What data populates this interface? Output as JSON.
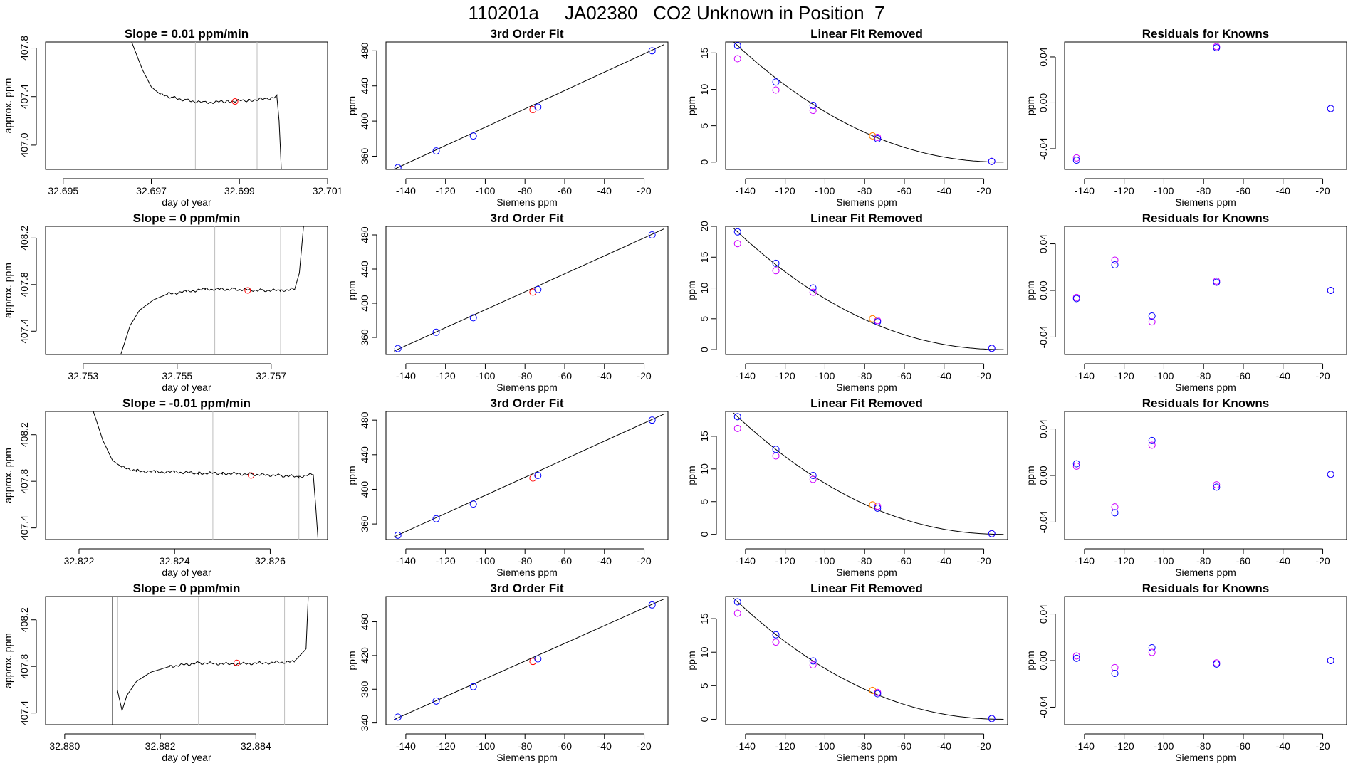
{
  "page": {
    "title": "110201a     JA02380   CO2 Unknown in Position  7"
  },
  "colors": {
    "trace": "#000000",
    "frame": "#000000",
    "vertical_marker": "#bebebe",
    "unknown_point": "#ff0000",
    "known_point_blue": "#0000ff",
    "known_point_magenta": "#cc00ff",
    "unknown_point_orange": "#ff8000"
  },
  "chart_data": [
    {
      "type": "line",
      "panel": "trace",
      "row": 0,
      "title": "Slope =  0.01  ppm/min",
      "xlabel": "day of year",
      "ylabel": "approx. ppm",
      "xlim": [
        32.6946,
        32.701
      ],
      "ylim": [
        406.8,
        407.85
      ],
      "xticks": [
        32.695,
        32.697,
        32.699,
        32.701
      ],
      "xtick_labels": [
        "32.695",
        "32.697",
        "32.699",
        "32.701"
      ],
      "yticks": [
        407.0,
        407.4,
        407.8
      ],
      "ytick_labels": [
        "407.0",
        "407.4",
        "407.8"
      ],
      "vlines": [
        32.698,
        32.6994
      ],
      "x": [
        32.6965,
        32.6968,
        32.697,
        32.6972,
        32.6975,
        32.6978,
        32.6982,
        32.6987,
        32.6992,
        32.6996,
        32.69985,
        32.6999,
        32.69995
      ],
      "y": [
        407.9,
        407.62,
        407.48,
        407.42,
        407.39,
        407.37,
        407.35,
        407.36,
        407.37,
        407.38,
        407.4,
        407.2,
        406.8
      ],
      "unknown_point": [
        32.6989,
        407.36
      ]
    },
    {
      "type": "line",
      "panel": "trace",
      "row": 1,
      "title": "Slope =  0  ppm/min",
      "xlabel": "day of year",
      "ylabel": "approx. ppm",
      "xlim": [
        32.7522,
        32.7582
      ],
      "ylim": [
        407.2,
        408.3
      ],
      "xticks": [
        32.753,
        32.755,
        32.757
      ],
      "xtick_labels": [
        "32.753",
        "32.755",
        "32.757"
      ],
      "yticks": [
        407.4,
        407.8,
        408.2
      ],
      "ytick_labels": [
        "407.4",
        "407.8",
        "408.2"
      ],
      "vlines": [
        32.7558,
        32.7572
      ],
      "x": [
        32.7538,
        32.754,
        32.7542,
        32.7545,
        32.7548,
        32.7552,
        32.7556,
        32.7562,
        32.7568,
        32.7572,
        32.7575,
        32.7576,
        32.7577
      ],
      "y": [
        407.2,
        407.45,
        407.58,
        407.67,
        407.72,
        407.74,
        407.76,
        407.76,
        407.75,
        407.75,
        407.76,
        407.9,
        408.35
      ],
      "unknown_point": [
        32.7565,
        407.75
      ]
    },
    {
      "type": "line",
      "panel": "trace",
      "row": 2,
      "title": "Slope =  -0.01  ppm/min",
      "xlabel": "day of year",
      "ylabel": "approx. ppm",
      "xlim": [
        32.8213,
        32.8272
      ],
      "ylim": [
        407.3,
        408.4
      ],
      "xticks": [
        32.822,
        32.824,
        32.826
      ],
      "xtick_labels": [
        "32.822",
        "32.824",
        "32.826"
      ],
      "yticks": [
        407.4,
        407.8,
        408.2
      ],
      "ytick_labels": [
        "407.4",
        "407.8",
        "408.2"
      ],
      "vlines": [
        32.8248,
        32.8266
      ],
      "x": [
        32.8223,
        32.8225,
        32.8227,
        32.8229,
        32.8232,
        32.8236,
        32.824,
        32.8245,
        32.825,
        32.8256,
        32.8262,
        32.8266,
        32.8269,
        32.82695,
        32.827
      ],
      "y": [
        408.4,
        408.15,
        407.98,
        407.92,
        407.89,
        407.88,
        407.88,
        407.87,
        407.87,
        407.86,
        407.85,
        407.84,
        407.86,
        407.6,
        407.3
      ],
      "unknown_point": [
        32.8256,
        407.85
      ]
    },
    {
      "type": "line",
      "panel": "trace",
      "row": 3,
      "title": "Slope =  0  ppm/min",
      "xlabel": "day of year",
      "ylabel": "approx. ppm",
      "xlim": [
        32.8796,
        32.8855
      ],
      "ylim": [
        407.3,
        408.4
      ],
      "xticks": [
        32.88,
        32.882,
        32.884
      ],
      "xtick_labels": [
        "32.880",
        "32.882",
        "32.884"
      ],
      "yticks": [
        407.4,
        407.8,
        408.2
      ],
      "ytick_labels": [
        "407.4",
        "407.8",
        "408.2"
      ],
      "vlines": [
        32.8828,
        32.8846
      ],
      "x": [
        32.881,
        32.881,
        32.8811,
        32.8811,
        32.8812,
        32.8813,
        32.8815,
        32.8818,
        32.8822,
        32.8828,
        32.8835,
        32.8842,
        32.8848,
        32.88505,
        32.8851
      ],
      "y": [
        407.3,
        408.4,
        408.4,
        407.6,
        407.42,
        407.55,
        407.67,
        407.75,
        407.8,
        407.83,
        407.82,
        407.83,
        407.84,
        407.95,
        408.45
      ],
      "unknown_point": [
        32.8836,
        407.83
      ]
    },
    {
      "type": "scatter",
      "panel": "fit",
      "row": 0,
      "title": "3rd Order Fit",
      "xlabel": "Siemens ppm",
      "ylabel": "ppm",
      "xlim": [
        -150,
        -8
      ],
      "ylim": [
        345,
        490
      ],
      "xticks": [
        -140,
        -120,
        -100,
        -80,
        -60,
        -40,
        -20
      ],
      "xtick_labels": [
        "-140",
        "-120",
        "-100",
        "-80",
        "-60",
        "-40",
        "-20"
      ],
      "yticks": [
        360,
        400,
        440,
        480
      ],
      "ytick_labels": [
        "360",
        "400",
        "440",
        "480"
      ],
      "knowns_x": [
        -144,
        -124.7,
        -106,
        -73.5,
        -16
      ],
      "knowns_y": [
        347,
        366,
        383,
        416,
        480
      ],
      "unknown": [
        -76,
        413
      ],
      "curve": {
        "xmin": -146,
        "xmax": -10,
        "ymin": 345,
        "ymax": 487
      }
    },
    {
      "type": "scatter",
      "panel": "fit",
      "row": 1,
      "title": "3rd Order Fit",
      "xlabel": "Siemens ppm",
      "ylabel": "ppm",
      "xlim": [
        -150,
        -8
      ],
      "ylim": [
        340,
        490
      ],
      "xticks": [
        -140,
        -120,
        -100,
        -80,
        -60,
        -40,
        -20
      ],
      "xtick_labels": [
        "-140",
        "-120",
        "-100",
        "-80",
        "-60",
        "-40",
        "-20"
      ],
      "yticks": [
        360,
        400,
        440,
        480
      ],
      "ytick_labels": [
        "360",
        "400",
        "440",
        "480"
      ],
      "knowns_x": [
        -144,
        -124.7,
        -106,
        -73.5,
        -16
      ],
      "knowns_y": [
        347,
        366,
        383,
        416,
        480
      ],
      "unknown": [
        -76,
        413
      ],
      "curve": {
        "xmin": -146,
        "xmax": -10,
        "ymin": 344,
        "ymax": 487
      }
    },
    {
      "type": "scatter",
      "panel": "fit",
      "row": 2,
      "title": "3rd Order Fit",
      "xlabel": "Siemens ppm",
      "ylabel": "ppm",
      "xlim": [
        -150,
        -8
      ],
      "ylim": [
        342,
        490
      ],
      "xticks": [
        -140,
        -120,
        -100,
        -80,
        -60,
        -40,
        -20
      ],
      "xtick_labels": [
        "-140",
        "-120",
        "-100",
        "-80",
        "-60",
        "-40",
        "-20"
      ],
      "yticks": [
        360,
        400,
        440,
        480
      ],
      "ytick_labels": [
        "360",
        "400",
        "440",
        "480"
      ],
      "knowns_x": [
        -144,
        -124.7,
        -106,
        -73.5,
        -16
      ],
      "knowns_y": [
        347,
        366,
        383,
        416,
        480
      ],
      "unknown": [
        -76,
        413
      ],
      "curve": {
        "xmin": -146,
        "xmax": -10,
        "ymin": 345,
        "ymax": 487
      }
    },
    {
      "type": "scatter",
      "panel": "fit",
      "row": 3,
      "title": "3rd Order Fit",
      "xlabel": "Siemens ppm",
      "ylabel": "ppm",
      "xlim": [
        -150,
        -8
      ],
      "ylim": [
        338,
        490
      ],
      "xticks": [
        -140,
        -120,
        -100,
        -80,
        -60,
        -40,
        -20
      ],
      "xtick_labels": [
        "-140",
        "-120",
        "-100",
        "-80",
        "-60",
        "-40",
        "-20"
      ],
      "yticks": [
        340,
        380,
        420,
        460
      ],
      "ytick_labels": [
        "340",
        "380",
        "420",
        "460"
      ],
      "knowns_x": [
        -144,
        -124.7,
        -106,
        -73.5,
        -16
      ],
      "knowns_y": [
        347,
        366,
        383,
        416,
        480
      ],
      "unknown": [
        -76,
        413
      ],
      "curve": {
        "xmin": -146,
        "xmax": -10,
        "ymin": 344,
        "ymax": 487
      }
    },
    {
      "type": "scatter",
      "panel": "linear",
      "row": 0,
      "title": "Linear Fit Removed",
      "xlabel": "Siemens ppm",
      "ylabel": "ppm",
      "xlim": [
        -150,
        -8
      ],
      "ylim": [
        -1,
        16.5
      ],
      "xticks": [
        -140,
        -120,
        -100,
        -80,
        -60,
        -40,
        -20
      ],
      "xtick_labels": [
        "-140",
        "-120",
        "-100",
        "-80",
        "-60",
        "-40",
        "-20"
      ],
      "yticks": [
        0,
        5,
        10,
        15
      ],
      "ytick_labels": [
        "0",
        "5",
        "10",
        "15"
      ],
      "knowns_x": [
        -144,
        -124.7,
        -106,
        -73.5,
        -16
      ],
      "knowns_y_blue": [
        16.0,
        11.0,
        7.8,
        3.2,
        0.1
      ],
      "knowns_y_magenta": [
        14.2,
        9.9,
        7.1,
        3.4,
        0.1
      ],
      "unknown": [
        -76,
        3.6
      ],
      "curve_peak": 16.0
    },
    {
      "type": "scatter",
      "panel": "linear",
      "row": 1,
      "title": "Linear Fit Removed",
      "xlabel": "Siemens ppm",
      "ylabel": "ppm",
      "xlim": [
        -150,
        -8
      ],
      "ylim": [
        -0.8,
        20
      ],
      "xticks": [
        -140,
        -120,
        -100,
        -80,
        -60,
        -40,
        -20
      ],
      "xtick_labels": [
        "-140",
        "-120",
        "-100",
        "-80",
        "-60",
        "-40",
        "-20"
      ],
      "yticks": [
        0,
        5,
        10,
        15,
        20
      ],
      "ytick_labels": [
        "0",
        "5",
        "10",
        "15",
        "20"
      ],
      "knowns_x": [
        -144,
        -124.7,
        -106,
        -73.5,
        -16
      ],
      "knowns_y_blue": [
        19.1,
        14.0,
        10.0,
        4.5,
        0.2
      ],
      "knowns_y_magenta": [
        17.2,
        12.8,
        9.3,
        4.7,
        0.2
      ],
      "unknown": [
        -76,
        5.0
      ],
      "curve_peak": 19.1
    },
    {
      "type": "scatter",
      "panel": "linear",
      "row": 2,
      "title": "Linear Fit Removed",
      "xlabel": "Siemens ppm",
      "ylabel": "ppm",
      "xlim": [
        -150,
        -8
      ],
      "ylim": [
        -0.8,
        18.8
      ],
      "xticks": [
        -140,
        -120,
        -100,
        -80,
        -60,
        -40,
        -20
      ],
      "xtick_labels": [
        "-140",
        "-120",
        "-100",
        "-80",
        "-60",
        "-40",
        "-20"
      ],
      "yticks": [
        0,
        5,
        10,
        15
      ],
      "ytick_labels": [
        "0",
        "5",
        "10",
        "15"
      ],
      "knowns_x": [
        -144,
        -124.7,
        -106,
        -73.5,
        -16
      ],
      "knowns_y_blue": [
        18.0,
        13.0,
        9.0,
        4.0,
        0.1
      ],
      "knowns_y_magenta": [
        16.2,
        12.0,
        8.4,
        4.3,
        0.1
      ],
      "unknown": [
        -76,
        4.5
      ],
      "curve_peak": 18.0
    },
    {
      "type": "scatter",
      "panel": "linear",
      "row": 3,
      "title": "Linear Fit Removed",
      "xlabel": "Siemens ppm",
      "ylabel": "ppm",
      "xlim": [
        -150,
        -8
      ],
      "ylim": [
        -0.8,
        18.3
      ],
      "xticks": [
        -140,
        -120,
        -100,
        -80,
        -60,
        -40,
        -20
      ],
      "xtick_labels": [
        "-140",
        "-120",
        "-100",
        "-80",
        "-60",
        "-40",
        "-20"
      ],
      "yticks": [
        0,
        5,
        10,
        15
      ],
      "ytick_labels": [
        "0",
        "5",
        "10",
        "15"
      ],
      "knowns_x": [
        -144,
        -124.7,
        -106,
        -73.5,
        -16
      ],
      "knowns_y_blue": [
        17.5,
        12.6,
        8.7,
        3.8,
        0.1
      ],
      "knowns_y_magenta": [
        15.8,
        11.5,
        8.1,
        4.0,
        0.1
      ],
      "unknown": [
        -76,
        4.3
      ],
      "curve_peak": 17.5
    },
    {
      "type": "scatter",
      "panel": "residual",
      "row": 0,
      "title": "Residuals for Knowns",
      "xlabel": "Siemens ppm",
      "ylabel": "ppm",
      "xlim": [
        -150,
        -8
      ],
      "ylim": [
        -0.058,
        0.053
      ],
      "xticks": [
        -140,
        -120,
        -100,
        -80,
        -60,
        -40,
        -20
      ],
      "xtick_labels": [
        "-140",
        "-120",
        "-100",
        "-80",
        "-60",
        "-40",
        "-20"
      ],
      "yticks": [
        -0.04,
        0.0,
        0.04
      ],
      "ytick_labels": [
        "-0.04",
        "0.00",
        "0.04"
      ],
      "knowns_x": [
        -144,
        -73.5,
        -16
      ],
      "knowns_y_blue": [
        -0.05,
        0.048,
        -0.005
      ],
      "knowns_y_magenta": [
        -0.048,
        0.049,
        -0.005
      ]
    },
    {
      "type": "scatter",
      "panel": "residual",
      "row": 1,
      "title": "Residuals for Knowns",
      "xlabel": "Siemens ppm",
      "ylabel": "ppm",
      "xlim": [
        -150,
        -8
      ],
      "ylim": [
        -0.055,
        0.055
      ],
      "xticks": [
        -140,
        -120,
        -100,
        -80,
        -60,
        -40,
        -20
      ],
      "xtick_labels": [
        "-140",
        "-120",
        "-100",
        "-80",
        "-60",
        "-40",
        "-20"
      ],
      "yticks": [
        -0.04,
        0.0,
        0.04
      ],
      "ytick_labels": [
        "-0.04",
        "0.00",
        "0.04"
      ],
      "knowns_x": [
        -144,
        -124.7,
        -106,
        -73.5,
        -16
      ],
      "knowns_y_blue": [
        -0.007,
        0.022,
        -0.022,
        0.007,
        0.0
      ],
      "knowns_y_magenta": [
        -0.006,
        0.026,
        -0.027,
        0.008,
        0.0
      ]
    },
    {
      "type": "scatter",
      "panel": "residual",
      "row": 2,
      "title": "Residuals for Knowns",
      "xlabel": "Siemens ppm",
      "ylabel": "ppm",
      "xlim": [
        -150,
        -8
      ],
      "ylim": [
        -0.055,
        0.055
      ],
      "xticks": [
        -140,
        -120,
        -100,
        -80,
        -60,
        -40,
        -20
      ],
      "xtick_labels": [
        "-140",
        "-120",
        "-100",
        "-80",
        "-60",
        "-40",
        "-20"
      ],
      "yticks": [
        -0.04,
        0.0,
        0.04
      ],
      "ytick_labels": [
        "-0.04",
        "0.00",
        "0.04"
      ],
      "knowns_x": [
        -144,
        -124.7,
        -106,
        -73.5,
        -16
      ],
      "knowns_y_blue": [
        0.01,
        -0.032,
        0.03,
        -0.01,
        0.001
      ],
      "knowns_y_magenta": [
        0.008,
        -0.027,
        0.026,
        -0.008,
        0.001
      ]
    },
    {
      "type": "scatter",
      "panel": "residual",
      "row": 3,
      "title": "Residuals for Knowns",
      "xlabel": "Siemens ppm",
      "ylabel": "ppm",
      "xlim": [
        -150,
        -8
      ],
      "ylim": [
        -0.055,
        0.055
      ],
      "xticks": [
        -140,
        -120,
        -100,
        -80,
        -60,
        -40,
        -20
      ],
      "xtick_labels": [
        "-140",
        "-120",
        "-100",
        "-80",
        "-60",
        "-40",
        "-20"
      ],
      "yticks": [
        -0.04,
        0.0,
        0.04
      ],
      "ytick_labels": [
        "-0.04",
        "0.00",
        "0.04"
      ],
      "knowns_x": [
        -144,
        -124.7,
        -106,
        -73.5,
        -16
      ],
      "knowns_y_blue": [
        0.002,
        -0.011,
        0.011,
        -0.003,
        0.0
      ],
      "knowns_y_magenta": [
        0.004,
        -0.006,
        0.007,
        -0.002,
        0.0
      ]
    }
  ]
}
